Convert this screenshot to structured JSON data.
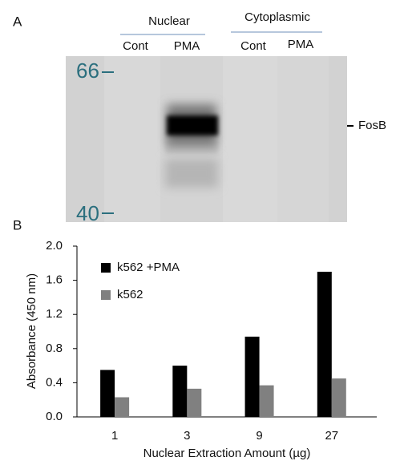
{
  "blot": {
    "panel_label": "A",
    "group_labels": [
      "Nuclear",
      "Cytoplasmic"
    ],
    "lane_labels": [
      "Cont",
      "PMA",
      "Cont",
      "PMA"
    ],
    "markers": [
      "66",
      "40"
    ],
    "band_label": "FosB"
  },
  "chart_data": {
    "type": "bar",
    "panel_label": "B",
    "categories": [
      "1",
      "3",
      "9",
      "27"
    ],
    "series": [
      {
        "name": "k562 +PMA",
        "color": "#000000",
        "values": [
          0.55,
          0.6,
          0.94,
          1.7
        ]
      },
      {
        "name": "k562",
        "color": "#808080",
        "values": [
          0.23,
          0.33,
          0.37,
          0.45
        ]
      }
    ],
    "ylim": [
      0,
      2.0
    ],
    "yticks": [
      {
        "value": 0,
        "label": "0.0"
      },
      {
        "value": 0.4,
        "label": "0.4"
      },
      {
        "value": 0.8,
        "label": "0.8"
      },
      {
        "value": 1.2,
        "label": "1.2"
      },
      {
        "value": 1.6,
        "label": "1.6"
      },
      {
        "value": 2.0,
        "label": "2.0"
      }
    ],
    "x_label": "Nuclear Extraction Amount (µg)",
    "y_label": "Absorbance (450 nm)",
    "grid": false
  }
}
